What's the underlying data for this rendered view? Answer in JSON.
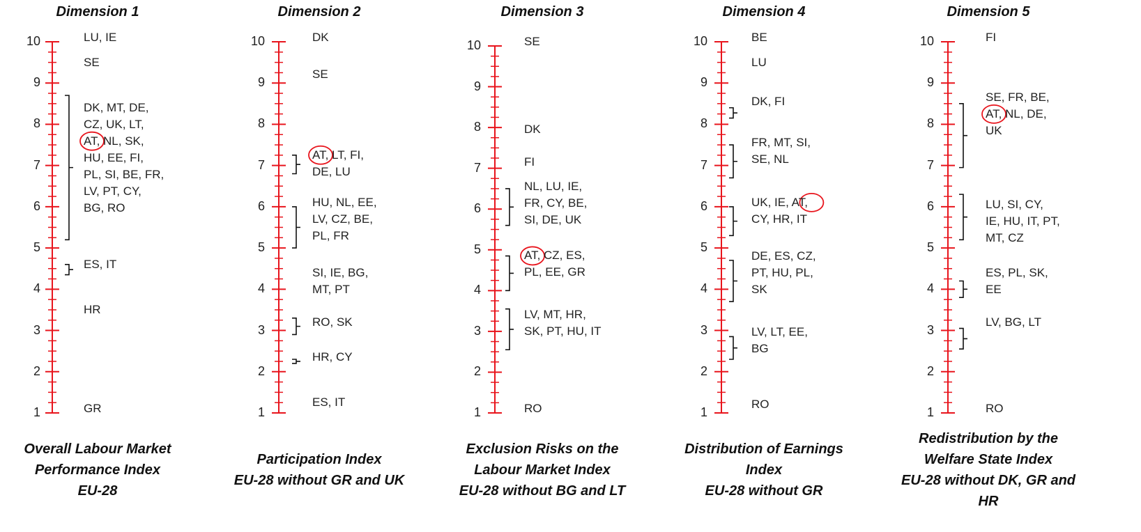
{
  "colors": {
    "axis": "#e8141c",
    "highlight": "#e8141c",
    "text": "#222222"
  },
  "chart_data": [
    {
      "type": "scale",
      "top_title": "Dimension 1",
      "bottom_title": [
        "Overall Labour Market",
        "Performance Index",
        "EU-28"
      ],
      "ylim": [
        1,
        10
      ],
      "yticks": [
        "1",
        "2",
        "3",
        "4",
        "5",
        "6",
        "7",
        "8",
        "9",
        "10"
      ],
      "groups": [
        {
          "lines": [
            "LU, IE"
          ],
          "at": 10,
          "bracket": null
        },
        {
          "lines": [
            "SE"
          ],
          "at": 9.4,
          "bracket": null
        },
        {
          "lines": [
            "DK, MT, DE,",
            "CZ, UK, LT,",
            "AT, NL, SK,",
            "HU, EE, FI,",
            "PL, SI, BE, FR,",
            "LV, PT, CY,",
            "BG, RO"
          ],
          "at": 8.3,
          "bracket": [
            8.7,
            5.2
          ],
          "highlight": "AT"
        },
        {
          "lines": [
            "ES, IT"
          ],
          "at": 4.5,
          "bracket": [
            4.6,
            4.35
          ]
        },
        {
          "lines": [
            "HR"
          ],
          "at": 3.4,
          "bracket": null
        },
        {
          "lines": [
            "GR"
          ],
          "at": 1.0,
          "bracket": null
        }
      ]
    },
    {
      "type": "scale",
      "top_title": "Dimension 2",
      "bottom_title": [
        "Participation Index",
        "EU-28 without GR and UK"
      ],
      "ylim": [
        1,
        10
      ],
      "yticks": [
        "1",
        "2",
        "3",
        "4",
        "5",
        "6",
        "7",
        "8",
        "9",
        "10"
      ],
      "groups": [
        {
          "lines": [
            "DK"
          ],
          "at": 10,
          "bracket": null
        },
        {
          "lines": [
            "SE"
          ],
          "at": 9.1,
          "bracket": null
        },
        {
          "lines": [
            "AT, LT, FI,",
            "DE, LU"
          ],
          "at": 7.15,
          "bracket": [
            7.25,
            6.8
          ],
          "highlight": "AT"
        },
        {
          "lines": [
            "HU, NL, EE,",
            "LV, CZ, BE,",
            "PL, FR"
          ],
          "at": 6.0,
          "bracket": [
            6.0,
            5.0
          ]
        },
        {
          "lines": [
            "SI, IE, BG,",
            "MT, PT"
          ],
          "at": 4.3,
          "bracket": null
        },
        {
          "lines": [
            "RO, SK"
          ],
          "at": 3.1,
          "bracket": [
            3.3,
            2.9
          ]
        },
        {
          "lines": [
            "HR, CY"
          ],
          "at": 2.25,
          "bracket": [
            2.3,
            2.2
          ]
        },
        {
          "lines": [
            "ES, IT"
          ],
          "at": 1.15,
          "bracket": null
        }
      ]
    },
    {
      "type": "scale",
      "top_title": "Dimension 3",
      "bottom_title": [
        "Exclusion Risks on the",
        "Labour Market Index",
        "EU-28 without BG and LT"
      ],
      "ylim": [
        1,
        10
      ],
      "yticks": [
        "1",
        "2",
        "3",
        "4",
        "5",
        "6",
        "7",
        "8",
        "9",
        "10"
      ],
      "groups": [
        {
          "lines": [
            "SE"
          ],
          "at": 10,
          "bracket": null
        },
        {
          "lines": [
            "DK"
          ],
          "at": 7.85,
          "bracket": null
        },
        {
          "lines": [
            "FI"
          ],
          "at": 7.05,
          "bracket": null
        },
        {
          "lines": [
            "NL, LU, IE,",
            "FR, CY, BE,",
            "SI, DE, UK"
          ],
          "at": 6.45,
          "bracket": [
            6.5,
            5.6
          ]
        },
        {
          "lines": [
            "AT, CZ, ES,",
            "PL, EE, GR"
          ],
          "at": 4.75,
          "bracket": [
            4.85,
            4.0
          ]
        },
        {
          "lines": [
            "LV, MT, HR,",
            "SK, PT, HU, IT"
          ],
          "at": 3.3,
          "bracket": [
            3.55,
            2.55
          ]
        },
        {
          "lines": [
            "RO"
          ],
          "at": 1.0,
          "bracket": null
        }
      ],
      "highlight_group": 4
    },
    {
      "type": "scale",
      "top_title": "Dimension 4",
      "bottom_title": [
        "Distribution of Earnings",
        "Index",
        "EU-28 without GR"
      ],
      "ylim": [
        1,
        10
      ],
      "yticks": [
        "1",
        "2",
        "3",
        "4",
        "5",
        "6",
        "7",
        "8",
        "9",
        "10"
      ],
      "groups": [
        {
          "lines": [
            "BE"
          ],
          "at": 10,
          "bracket": null
        },
        {
          "lines": [
            "LU"
          ],
          "at": 9.4,
          "bracket": null
        },
        {
          "lines": [
            "DK, FI"
          ],
          "at": 8.45,
          "bracket": [
            8.4,
            8.15
          ]
        },
        {
          "lines": [
            "FR, MT, SI,",
            "SE, NL"
          ],
          "at": 7.45,
          "bracket": [
            7.5,
            6.7
          ]
        },
        {
          "lines": [
            "UK, IE, AT,",
            "CY, HR, IT"
          ],
          "at": 6.0,
          "bracket": [
            6.0,
            5.3
          ]
        },
        {
          "lines": [
            "DE, ES, CZ,",
            "PT, HU, PL,",
            "SK"
          ],
          "at": 4.7,
          "bracket": [
            4.7,
            3.7
          ]
        },
        {
          "lines": [
            "LV, LT, EE,",
            "BG"
          ],
          "at": 2.85,
          "bracket": [
            2.85,
            2.3
          ]
        },
        {
          "lines": [
            "RO"
          ],
          "at": 1.1,
          "bracket": null
        }
      ],
      "highlight_group": 4
    },
    {
      "type": "scale",
      "top_title": "Dimension 5",
      "bottom_title": [
        "Redistribution by the",
        "Welfare State Index",
        "EU-28 without DK, GR and",
        "HR"
      ],
      "ylim": [
        1,
        10
      ],
      "yticks": [
        "1",
        "2",
        "3",
        "4",
        "5",
        "6",
        "7",
        "8",
        "9",
        "10"
      ],
      "groups": [
        {
          "lines": [
            "FI"
          ],
          "at": 10,
          "bracket": null
        },
        {
          "lines": [
            "SE, FR, BE,",
            "AT, NL, DE,",
            "UK"
          ],
          "at": 8.55,
          "bracket": [
            8.5,
            6.95
          ]
        },
        {
          "lines": [
            "LU, SI, CY,",
            "IE, HU, IT, PT,",
            "MT, CZ"
          ],
          "at": 5.95,
          "bracket": [
            6.3,
            5.2
          ]
        },
        {
          "lines": [
            "ES, PL, SK,",
            "EE"
          ],
          "at": 4.3,
          "bracket": [
            4.2,
            3.8
          ]
        },
        {
          "lines": [
            "LV, BG, LT"
          ],
          "at": 3.1,
          "bracket": [
            3.05,
            2.55
          ]
        },
        {
          "lines": [
            "RO"
          ],
          "at": 1.0,
          "bracket": null
        }
      ],
      "highlight_group": 1
    }
  ]
}
